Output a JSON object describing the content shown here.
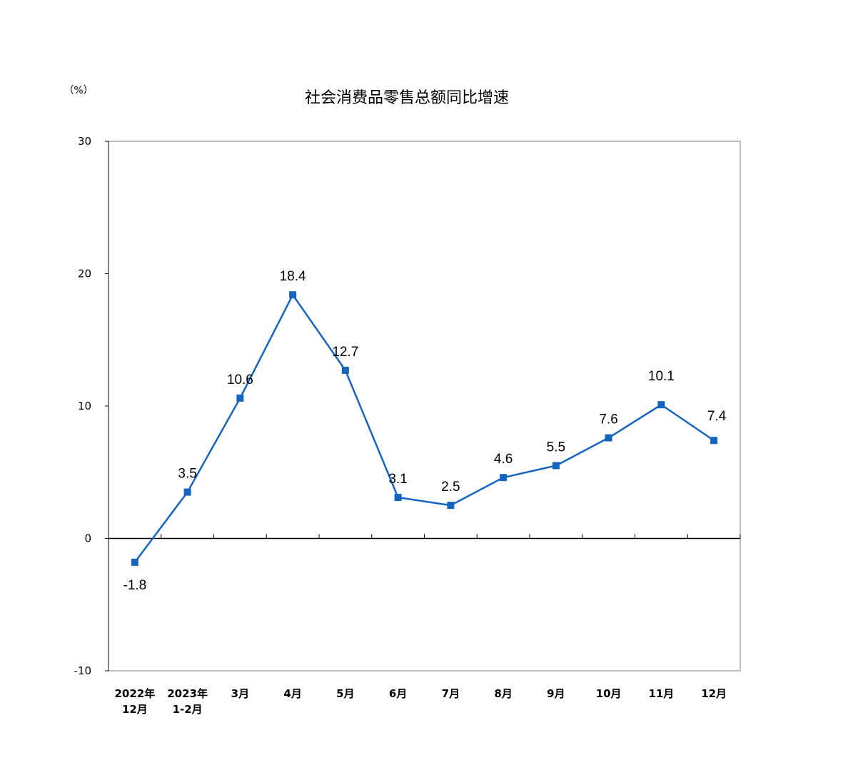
{
  "chart_data": {
    "type": "line",
    "title": "社会消费品零售总额同比增速",
    "unit_label": "（%）",
    "categories": [
      [
        "2022年",
        "12月"
      ],
      [
        "2023年",
        "1-2月"
      ],
      [
        "3月"
      ],
      [
        "4月"
      ],
      [
        "5月"
      ],
      [
        "6月"
      ],
      [
        "7月"
      ],
      [
        "8月"
      ],
      [
        "9月"
      ],
      [
        "10月"
      ],
      [
        "11月"
      ],
      [
        "12月"
      ]
    ],
    "series": [
      {
        "values": [
          -1.8,
          3.5,
          10.6,
          18.4,
          12.7,
          3.1,
          2.5,
          4.6,
          5.5,
          7.6,
          10.1,
          7.4
        ],
        "color": "#1565C0"
      }
    ],
    "data_labels": [
      "-1.8",
      "3.5",
      "10.6",
      "18.4",
      "12.7",
      "3.1",
      "2.5",
      "4.6",
      "5.5",
      "7.6",
      "10.1",
      "7.4"
    ],
    "yticks": [
      "30",
      "20",
      "10",
      "0",
      "-10"
    ],
    "ylim": [
      -10,
      30
    ],
    "grid": false,
    "legend": "none",
    "colors": {
      "line": "#1565C0",
      "axis": "#000000",
      "frame": "#808080"
    }
  }
}
